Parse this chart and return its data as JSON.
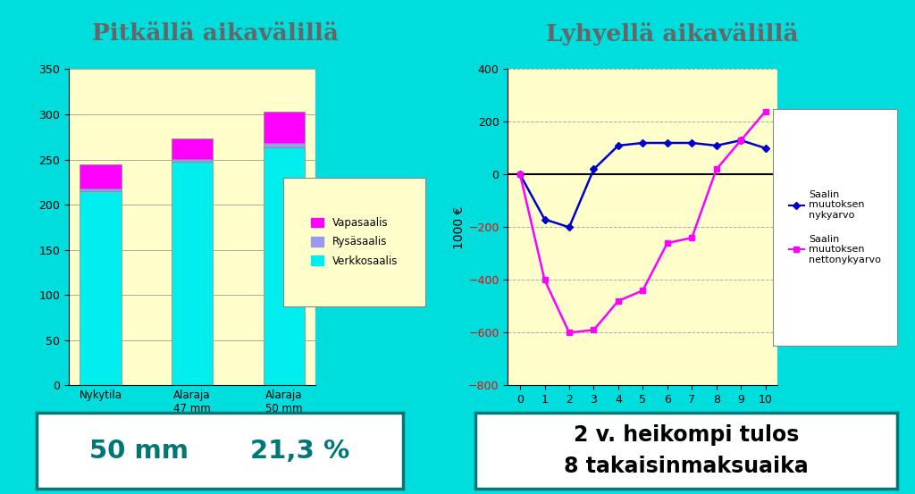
{
  "left_title": "Pitkällä aikavälillä",
  "right_title": "Lyhyellä aikavälillä",
  "bar_categories": [
    "Nykytila",
    "Alaraja\n47 mm",
    "Alaraja\n50 mm"
  ],
  "verkkosaalis": [
    215,
    248,
    263
  ],
  "rysasaalis": [
    3,
    3,
    5
  ],
  "vapasaalis": [
    27,
    22,
    35
  ],
  "bar_ylim": [
    0,
    350
  ],
  "bar_yticks": [
    0,
    50,
    100,
    150,
    200,
    250,
    300,
    350
  ],
  "color_verkko": "#00EEEE",
  "color_rysa": "#9999EE",
  "color_vapas": "#FF00FF",
  "line_x": [
    0,
    1,
    2,
    3,
    4,
    5,
    6,
    7,
    8,
    9,
    10
  ],
  "line_nyky": [
    0,
    -170,
    -200,
    20,
    110,
    120,
    120,
    120,
    110,
    130,
    100
  ],
  "line_netto": [
    0,
    -400,
    -600,
    -590,
    -480,
    -440,
    -260,
    -240,
    20,
    130,
    240
  ],
  "line_ylim": [
    -800,
    400
  ],
  "line_yticks": [
    -800,
    -600,
    -400,
    -200,
    0,
    200,
    400
  ],
  "color_nyky": "#0000CC",
  "color_netto": "#FF00FF",
  "bg_color": "#00DDDD",
  "plot_bg": "#FFFFCC",
  "legend_bg": "#FFFFCC",
  "title_color": "#666666",
  "bottom_left_text1": "50 mm",
  "bottom_left_text2": "21,3 %",
  "bottom_right_text": "2 v. heikompi tulos\n8 takaisinmaksuaika",
  "ylabel_right": "1000 €",
  "box_border_color": "#007777"
}
